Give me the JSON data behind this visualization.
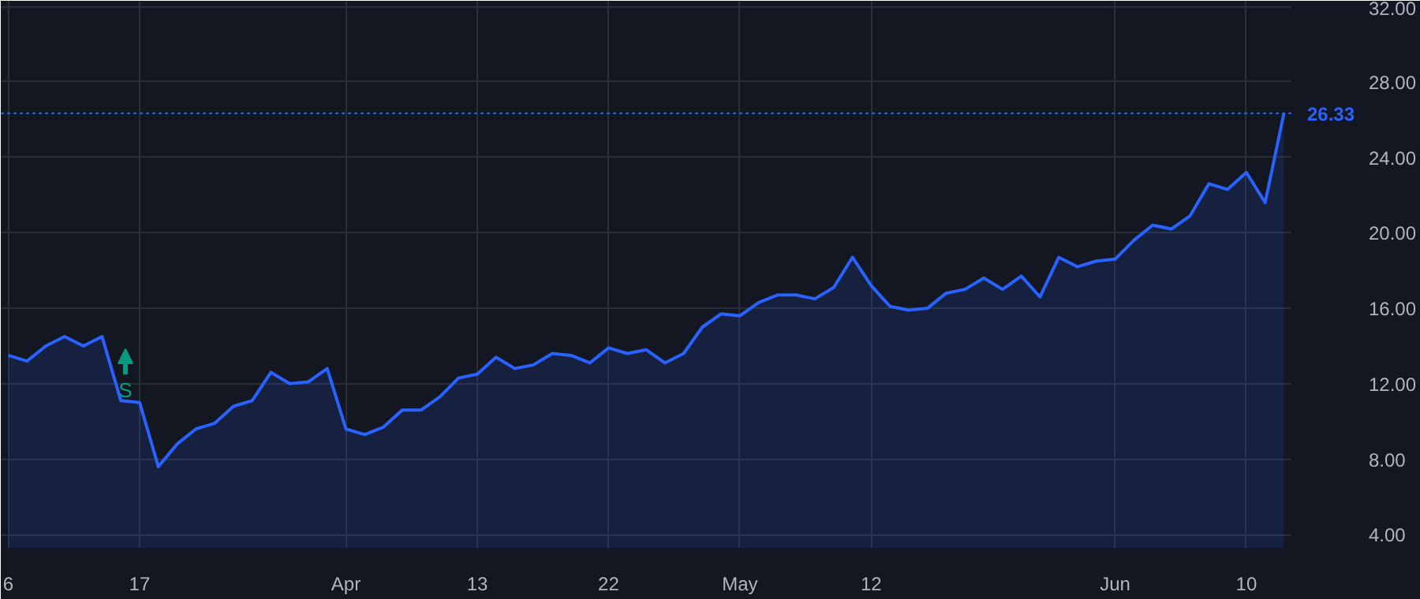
{
  "chart_data": {
    "type": "area",
    "categories": [
      "6",
      null,
      null,
      null,
      null,
      null,
      null,
      "17",
      null,
      null,
      null,
      null,
      null,
      null,
      null,
      null,
      null,
      null,
      "Apr",
      null,
      null,
      null,
      null,
      null,
      null,
      "13",
      null,
      null,
      null,
      null,
      null,
      null,
      "22",
      null,
      null,
      null,
      null,
      null,
      null,
      "May",
      null,
      null,
      null,
      null,
      null,
      null,
      "12",
      null,
      null,
      null,
      null,
      null,
      null,
      null,
      null,
      null,
      null,
      null,
      null,
      "Jun",
      null,
      null,
      null,
      null,
      null,
      null,
      "10",
      null,
      null
    ],
    "series": [
      {
        "color": "#2962ff",
        "values": [
          13.5,
          13.2,
          14.0,
          14.5,
          14.0,
          14.5,
          11.1,
          11.0,
          7.6,
          8.8,
          9.6,
          9.9,
          10.8,
          11.1,
          12.6,
          12.0,
          12.1,
          12.8,
          9.6,
          9.3,
          9.7,
          10.6,
          10.6,
          11.3,
          12.3,
          12.5,
          13.4,
          12.8,
          13.0,
          13.6,
          13.5,
          13.1,
          13.9,
          13.6,
          13.8,
          13.1,
          13.6,
          15.0,
          15.7,
          15.6,
          16.3,
          16.7,
          16.7,
          16.5,
          17.1,
          18.7,
          17.2,
          16.1,
          15.9,
          16.0,
          16.8,
          17.0,
          17.6,
          17.0,
          17.7,
          16.6,
          18.7,
          18.2,
          18.5,
          18.6,
          19.6,
          20.4,
          20.2,
          20.9,
          22.6,
          22.3,
          23.2,
          21.6,
          26.33
        ]
      }
    ],
    "ylim": [
      3.3,
      32.3
    ],
    "yticks": [
      {
        "value": 4,
        "label": "4.00"
      },
      {
        "value": 8,
        "label": "8.00"
      },
      {
        "value": 12,
        "label": "12.00"
      },
      {
        "value": 16,
        "label": "16.00"
      },
      {
        "value": 20,
        "label": "20.00"
      },
      {
        "value": 24,
        "label": "24.00"
      },
      {
        "value": 28,
        "label": "28.00"
      },
      {
        "value": 32,
        "label": "32.00"
      }
    ],
    "ref_lines": [
      {
        "axis": "y",
        "value": 26.33,
        "label": "26.33",
        "color": "#2962ff",
        "line_style": "dotted"
      }
    ],
    "annotations": [
      "S"
    ],
    "grid": true
  }
}
